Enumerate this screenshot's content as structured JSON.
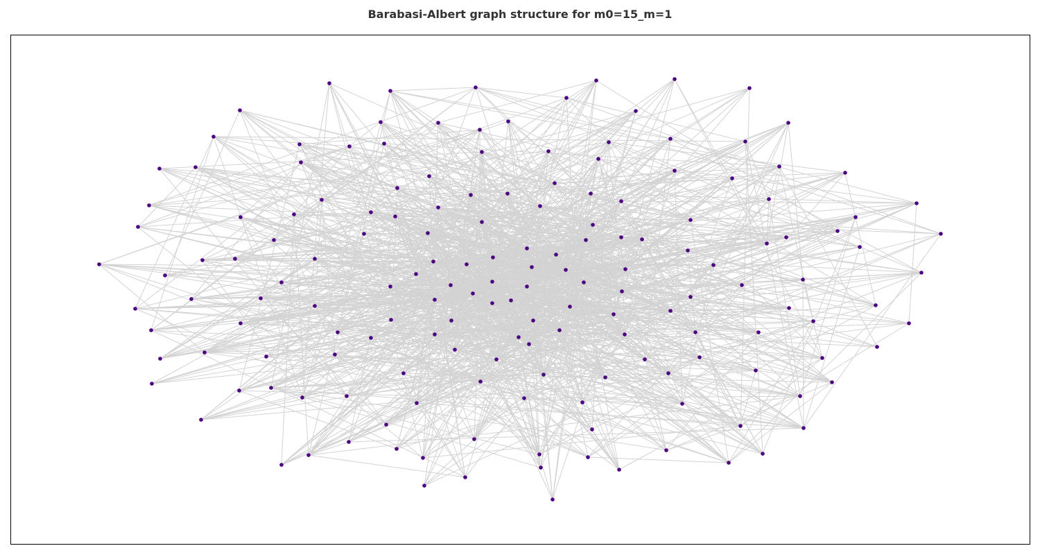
{
  "title": "Barabasi-Albert graph structure for m0=15_m=1",
  "colors": {
    "node": "#4b0082",
    "edge": "#d3d3d3",
    "frame": "#000000",
    "title": "#333333"
  },
  "graph": {
    "layout": "spring",
    "node_count": 184,
    "node_marker": "filled-circle",
    "axes_visible": false
  }
}
